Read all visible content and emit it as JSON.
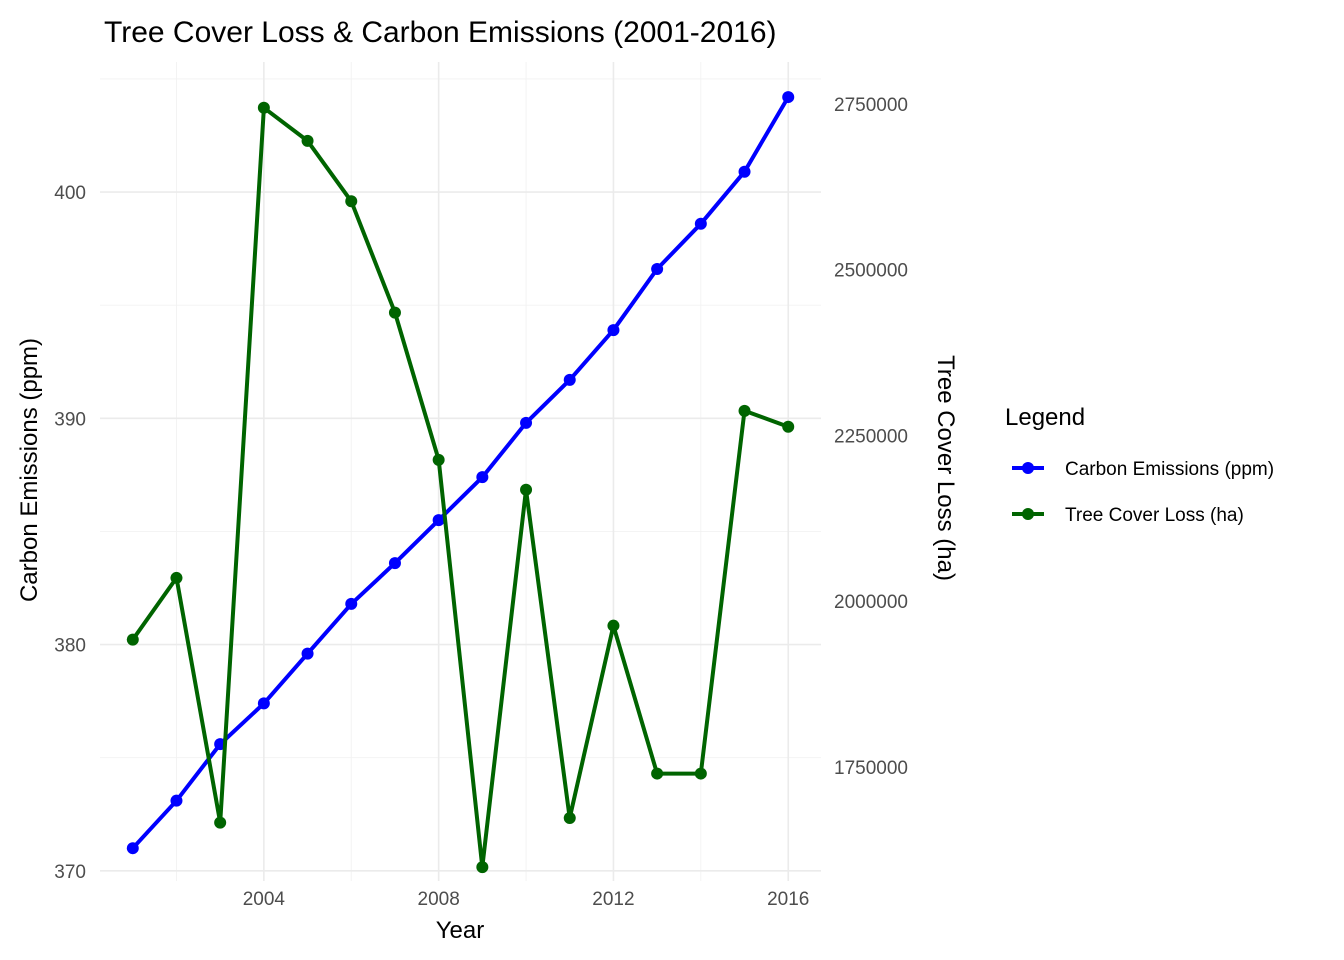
{
  "chart_data": {
    "type": "line",
    "title": "Tree Cover Loss & Carbon Emissions (2001-2016)",
    "xlabel": "Year",
    "ylabel": "Carbon Emissions (ppm)",
    "y2label": "Tree Cover Loss (ha)",
    "x": [
      2001,
      2002,
      2003,
      2004,
      2005,
      2006,
      2007,
      2008,
      2009,
      2010,
      2011,
      2012,
      2013,
      2014,
      2015,
      2016
    ],
    "xlim": [
      2000.25,
      2016.75
    ],
    "xticks": [
      2004,
      2008,
      2012,
      2016
    ],
    "xtick_labels": [
      "2004",
      "2008",
      "2012",
      "2016"
    ],
    "ylim": [
      369.55,
      405.75
    ],
    "yticks": [
      370,
      380,
      390,
      400
    ],
    "ytick_labels": [
      "370",
      "380",
      "390",
      "400"
    ],
    "y2lim": [
      1578000,
      2813000
    ],
    "y2ticks": [
      1750000,
      2000000,
      2250000,
      2500000,
      2750000
    ],
    "y2tick_labels": [
      "1750000",
      "2000000",
      "2250000",
      "2500000",
      "2750000"
    ],
    "grid": true,
    "legend": {
      "title": "Legend",
      "position": "right"
    },
    "series": [
      {
        "name": "Carbon Emissions (ppm)",
        "axis": "left",
        "color": "#0000ff",
        "values": [
          371.0,
          373.1,
          375.6,
          377.4,
          379.6,
          381.8,
          383.6,
          385.5,
          387.4,
          389.8,
          391.7,
          393.9,
          396.6,
          398.6,
          400.9,
          404.2
        ]
      },
      {
        "name": "Tree Cover Loss (ha)",
        "axis": "right",
        "color": "#006400",
        "values": [
          1942000,
          2035000,
          1666000,
          2744000,
          2694000,
          2603000,
          2435000,
          2213000,
          1599000,
          2168000,
          1673000,
          1963000,
          1740000,
          1740000,
          2287000,
          2263000
        ]
      }
    ]
  }
}
